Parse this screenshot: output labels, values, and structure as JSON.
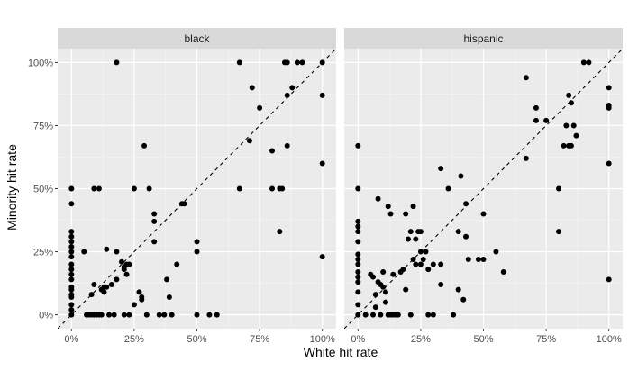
{
  "chart_data": {
    "type": "scatter",
    "xlabel": "White hit rate",
    "ylabel": "Minority hit rate",
    "xlim": [
      0,
      1
    ],
    "ylim": [
      0,
      1
    ],
    "x_ticks": [
      0,
      0.25,
      0.5,
      0.75,
      1
    ],
    "y_ticks": [
      0,
      0.25,
      0.5,
      0.75,
      1
    ],
    "x_tick_labels": [
      "0%",
      "25%",
      "50%",
      "75%",
      "100%"
    ],
    "y_tick_labels": [
      "0%",
      "25%",
      "50%",
      "75%",
      "100%"
    ],
    "grid": true,
    "reference_line": {
      "slope": 1,
      "intercept": 0,
      "style": "dashed"
    },
    "facets": [
      {
        "label": "black",
        "points": [
          [
            0,
            0
          ],
          [
            0,
            0.02
          ],
          [
            0,
            0.04
          ],
          [
            0,
            0.07
          ],
          [
            0,
            0.08
          ],
          [
            0,
            0.1
          ],
          [
            0,
            0.11
          ],
          [
            0,
            0.14
          ],
          [
            0,
            0.16
          ],
          [
            0,
            0.18
          ],
          [
            0,
            0.2
          ],
          [
            0,
            0.23
          ],
          [
            0,
            0.25
          ],
          [
            0,
            0.27
          ],
          [
            0,
            0.29
          ],
          [
            0,
            0.31
          ],
          [
            0,
            0.33
          ],
          [
            0,
            0.44
          ],
          [
            0,
            0.5
          ],
          [
            0.05,
            0.25
          ],
          [
            0.06,
            0
          ],
          [
            0.07,
            0
          ],
          [
            0.08,
            0
          ],
          [
            0.09,
            0
          ],
          [
            0.08,
            0.08
          ],
          [
            0.09,
            0.12
          ],
          [
            0.09,
            0.5
          ],
          [
            0.11,
            0.5
          ],
          [
            0.1,
            0
          ],
          [
            0.11,
            0
          ],
          [
            0.12,
            0.1
          ],
          [
            0.12,
            0
          ],
          [
            0.13,
            0.11
          ],
          [
            0.13,
            0.09
          ],
          [
            0.14,
            0.11
          ],
          [
            0.14,
            0.26
          ],
          [
            0.15,
            0
          ],
          [
            0.16,
            0.12
          ],
          [
            0.17,
            0
          ],
          [
            0.18,
            0.14
          ],
          [
            0.18,
            0.25
          ],
          [
            0.18,
            1.0
          ],
          [
            0.2,
            0.21
          ],
          [
            0.21,
            0.18
          ],
          [
            0.21,
            0.19
          ],
          [
            0.22,
            0.16
          ],
          [
            0.22,
            0.2
          ],
          [
            0.23,
            0.2
          ],
          [
            0.21,
            0
          ],
          [
            0.23,
            0
          ],
          [
            0.25,
            0.04
          ],
          [
            0.25,
            0.5
          ],
          [
            0.27,
            0.09
          ],
          [
            0.28,
            0.07
          ],
          [
            0.28,
            0.06
          ],
          [
            0.29,
            0.67
          ],
          [
            0.3,
            0
          ],
          [
            0.31,
            0.5
          ],
          [
            0.33,
            0.4
          ],
          [
            0.33,
            0.37
          ],
          [
            0.33,
            0.29
          ],
          [
            0.35,
            0
          ],
          [
            0.37,
            0
          ],
          [
            0.38,
            0.14
          ],
          [
            0.39,
            0.07
          ],
          [
            0.4,
            0
          ],
          [
            0.42,
            0.2
          ],
          [
            0.44,
            0.44
          ],
          [
            0.45,
            0.44
          ],
          [
            0.5,
            0.25
          ],
          [
            0.5,
            0.29
          ],
          [
            0.5,
            0
          ],
          [
            0.55,
            0
          ],
          [
            0.58,
            0
          ],
          [
            0.67,
            0.5
          ],
          [
            0.67,
            1.0
          ],
          [
            0.71,
            0.69
          ],
          [
            0.72,
            0.9
          ],
          [
            0.75,
            0.82
          ],
          [
            0.8,
            0.65
          ],
          [
            0.8,
            0.5
          ],
          [
            0.83,
            0.33
          ],
          [
            0.83,
            0.5
          ],
          [
            0.84,
            0.5
          ],
          [
            0.85,
            1.0
          ],
          [
            0.86,
            1.0
          ],
          [
            0.86,
            0.87
          ],
          [
            0.86,
            0.67
          ],
          [
            0.88,
            0.9
          ],
          [
            0.9,
            1.0
          ],
          [
            0.92,
            1.0
          ],
          [
            1.0,
            1.0
          ],
          [
            1.0,
            0.87
          ],
          [
            1.0,
            0.6
          ],
          [
            1.0,
            0.23
          ]
        ]
      },
      {
        "label": "hispanic",
        "points": [
          [
            0,
            0
          ],
          [
            0,
            0.04
          ],
          [
            0,
            0.09
          ],
          [
            0,
            0.13
          ],
          [
            0,
            0.15
          ],
          [
            0,
            0.17
          ],
          [
            0,
            0.2
          ],
          [
            0,
            0.22
          ],
          [
            0,
            0.24
          ],
          [
            0,
            0.29
          ],
          [
            0,
            0.33
          ],
          [
            0,
            0.35
          ],
          [
            0,
            0.37
          ],
          [
            0,
            0.5
          ],
          [
            0,
            0.67
          ],
          [
            0.03,
            0
          ],
          [
            0.05,
            0.16
          ],
          [
            0.06,
            0.15
          ],
          [
            0.06,
            0
          ],
          [
            0.07,
            0.08
          ],
          [
            0.07,
            0.03
          ],
          [
            0.08,
            0.13
          ],
          [
            0.08,
            0.46
          ],
          [
            0.09,
            0.12
          ],
          [
            0.09,
            0
          ],
          [
            0.1,
            0.17
          ],
          [
            0.1,
            0.11
          ],
          [
            0.11,
            0.05
          ],
          [
            0.11,
            0.09
          ],
          [
            0.12,
            0.43
          ],
          [
            0.12,
            0
          ],
          [
            0.13,
            0
          ],
          [
            0.13,
            0.4
          ],
          [
            0.14,
            0.16
          ],
          [
            0.14,
            0
          ],
          [
            0.15,
            0
          ],
          [
            0.16,
            0
          ],
          [
            0.17,
            0.17
          ],
          [
            0.18,
            0.18
          ],
          [
            0.19,
            0.4
          ],
          [
            0.19,
            0.1
          ],
          [
            0.2,
            0.3
          ],
          [
            0.21,
            0.33
          ],
          [
            0.21,
            0
          ],
          [
            0.22,
            0.22
          ],
          [
            0.22,
            0.43
          ],
          [
            0.23,
            0.2
          ],
          [
            0.23,
            0.3
          ],
          [
            0.24,
            0.33
          ],
          [
            0.25,
            0.25
          ],
          [
            0.26,
            0.22
          ],
          [
            0.27,
            0.25
          ],
          [
            0.25,
            0.2
          ],
          [
            0.25,
            0.33
          ],
          [
            0.28,
            0.18
          ],
          [
            0.28,
            0
          ],
          [
            0.3,
            0.2
          ],
          [
            0.3,
            0
          ],
          [
            0.33,
            0.58
          ],
          [
            0.33,
            0.12
          ],
          [
            0.33,
            0.2
          ],
          [
            0.36,
            0.5
          ],
          [
            0.38,
            0
          ],
          [
            0.4,
            0.1
          ],
          [
            0.4,
            0.33
          ],
          [
            0.41,
            0.55
          ],
          [
            0.42,
            0.06
          ],
          [
            0.43,
            0.31
          ],
          [
            0.43,
            0.44
          ],
          [
            0.44,
            0.22
          ],
          [
            0.48,
            0.22
          ],
          [
            0.5,
            0.22
          ],
          [
            0.5,
            0.4
          ],
          [
            0.55,
            0.25
          ],
          [
            0.58,
            0.17
          ],
          [
            0.67,
            0.94
          ],
          [
            0.67,
            0.62
          ],
          [
            0.71,
            0.77
          ],
          [
            0.71,
            0.82
          ],
          [
            0.75,
            0.77
          ],
          [
            0.8,
            0.5
          ],
          [
            0.8,
            0.33
          ],
          [
            0.82,
            0.67
          ],
          [
            0.83,
            0.75
          ],
          [
            0.84,
            0.67
          ],
          [
            0.84,
            0.87
          ],
          [
            0.85,
            0.67
          ],
          [
            0.85,
            0.84
          ],
          [
            0.86,
            0.75
          ],
          [
            0.87,
            0.71
          ],
          [
            0.9,
            1.0
          ],
          [
            0.92,
            1.0
          ],
          [
            1.0,
            0.9
          ],
          [
            1.0,
            0.83
          ],
          [
            1.0,
            0.82
          ],
          [
            1.0,
            0.6
          ],
          [
            1.0,
            0.14
          ]
        ]
      }
    ]
  }
}
